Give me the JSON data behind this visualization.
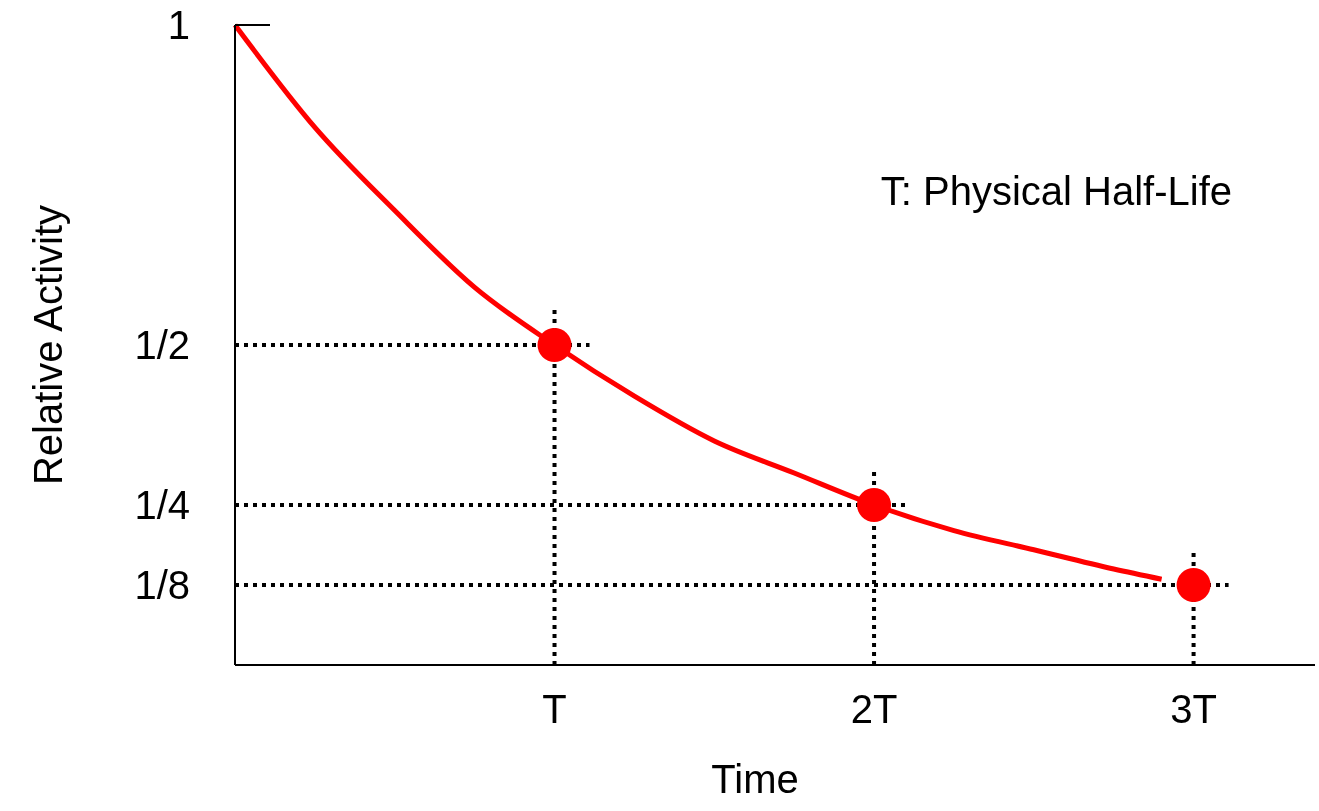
{
  "chart_data": {
    "type": "line",
    "xlabel": "Time",
    "ylabel": "Relative Activity",
    "annotations": [
      "T: Physical Half-Life"
    ],
    "xlim": [
      0,
      3.38
    ],
    "ylim": [
      0,
      1
    ],
    "xticks": [
      {
        "value": 1,
        "label": "T"
      },
      {
        "value": 2,
        "label": "2T"
      },
      {
        "value": 3,
        "label": "3T"
      }
    ],
    "yticks": [
      {
        "value": 0.125,
        "label": "1/8"
      },
      {
        "value": 0.25,
        "label": "1/4"
      },
      {
        "value": 0.5,
        "label": "1/2"
      },
      {
        "value": 1,
        "label": "1"
      }
    ],
    "grid": false,
    "series": [
      {
        "color": "#ff0000",
        "marker": "none",
        "x": [
          0,
          0.25,
          0.5,
          0.75,
          1,
          1.25,
          1.5,
          1.75,
          2,
          2.25,
          2.5,
          2.75,
          2.9
        ],
        "values": [
          1,
          0.84,
          0.71,
          0.59,
          0.5,
          0.42,
          0.35,
          0.3,
          0.25,
          0.21,
          0.18,
          0.15,
          0.134
        ]
      },
      {
        "type": "scatter",
        "color": "#ff0000",
        "marker": "circle",
        "x": [
          1,
          2,
          3
        ],
        "values": [
          0.5,
          0.25,
          0.125
        ]
      }
    ],
    "ref_lines": [
      {
        "axis": "y",
        "value": 0.5,
        "line_style": "dotted",
        "color": "#000000"
      },
      {
        "axis": "y",
        "value": 0.25,
        "line_style": "dotted",
        "color": "#000000"
      },
      {
        "axis": "y",
        "value": 0.125,
        "line_style": "dotted",
        "color": "#000000"
      },
      {
        "axis": "x",
        "value": 1,
        "line_style": "dotted",
        "color": "#000000"
      },
      {
        "axis": "x",
        "value": 2,
        "line_style": "dotted",
        "color": "#000000"
      },
      {
        "axis": "x",
        "value": 3,
        "line_style": "dotted",
        "color": "#000000"
      }
    ]
  }
}
